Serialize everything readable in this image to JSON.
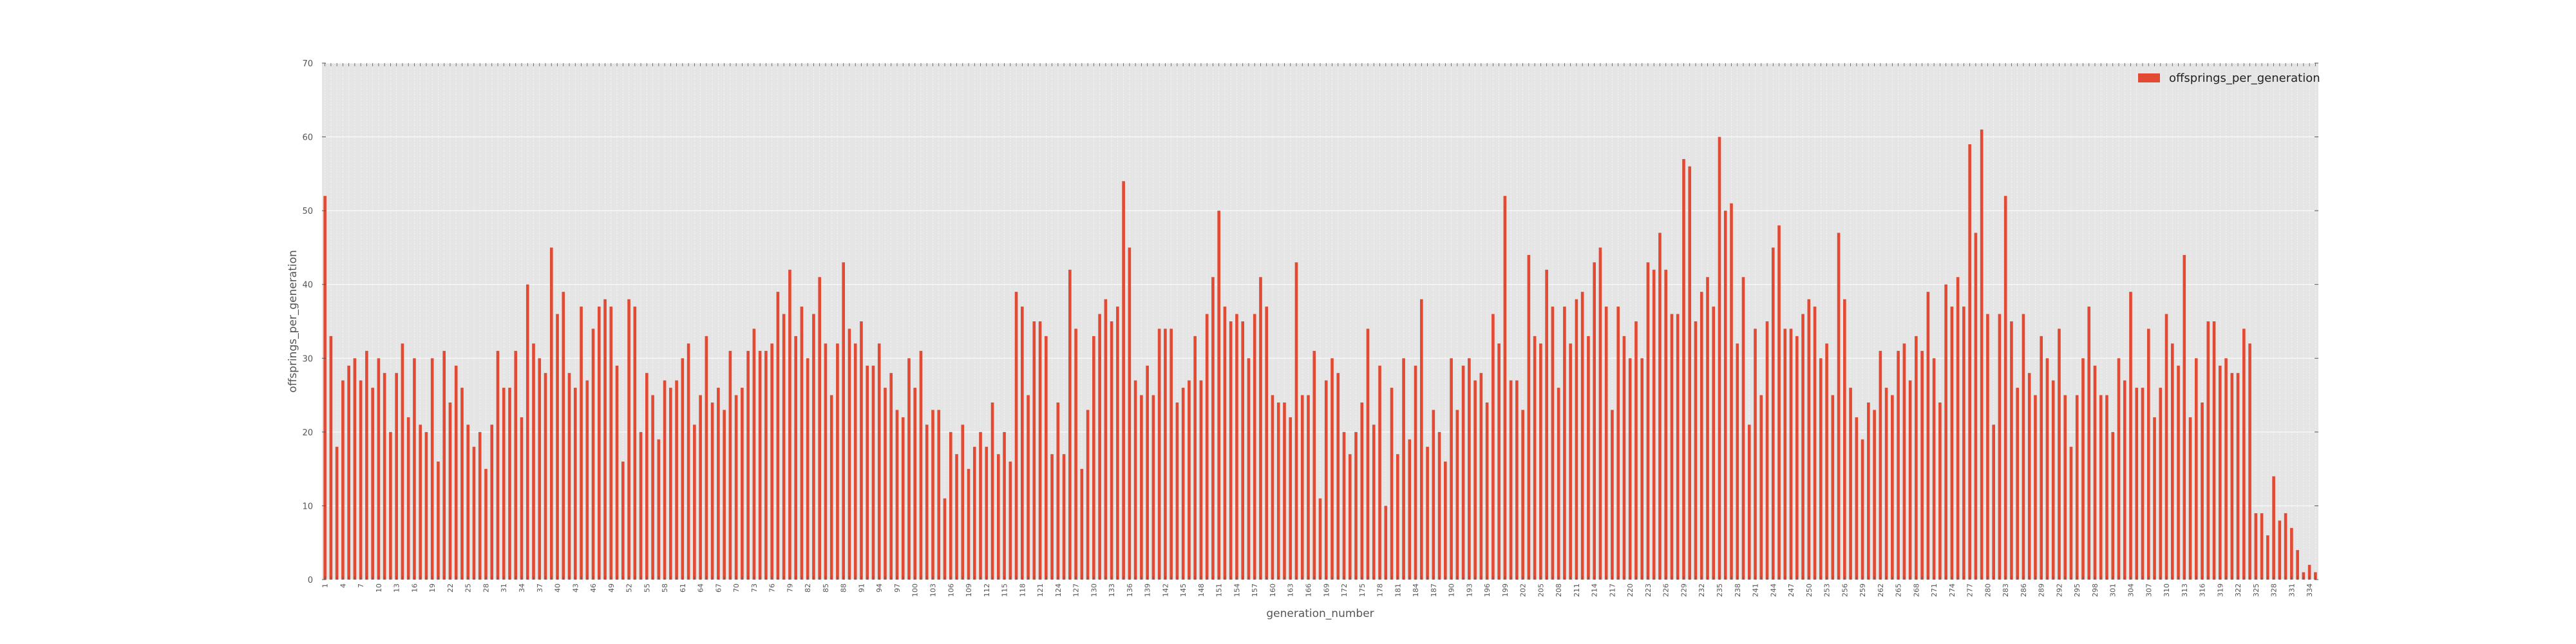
{
  "chart_data": {
    "type": "bar",
    "title": "",
    "xlabel": "generation_number",
    "ylabel": "offsprings_per_generation",
    "ylim": [
      0,
      70
    ],
    "yticks": [
      0,
      10,
      20,
      30,
      40,
      50,
      60,
      70
    ],
    "grid": true,
    "legend_placement": "top-right",
    "x_start": 1,
    "x_tick_label_step": 3,
    "series": [
      {
        "name": "offsprings_per_generation",
        "color": "#e24a33",
        "values": [
          52,
          33,
          18,
          27,
          29,
          30,
          27,
          31,
          26,
          30,
          28,
          20,
          28,
          32,
          22,
          30,
          21,
          20,
          30,
          16,
          31,
          24,
          29,
          26,
          21,
          18,
          20,
          15,
          21,
          31,
          26,
          26,
          31,
          22,
          40,
          32,
          30,
          28,
          45,
          36,
          39,
          28,
          26,
          37,
          27,
          34,
          37,
          38,
          37,
          29,
          16,
          38,
          37,
          20,
          28,
          25,
          19,
          27,
          26,
          27,
          30,
          32,
          21,
          25,
          33,
          24,
          26,
          23,
          31,
          25,
          26,
          31,
          34,
          31,
          31,
          32,
          39,
          36,
          42,
          33,
          37,
          30,
          36,
          41,
          32,
          25,
          32,
          43,
          34,
          32,
          35,
          29,
          29,
          32,
          26,
          28,
          23,
          22,
          30,
          26,
          31,
          21,
          23,
          23,
          11,
          20,
          17,
          21,
          15,
          18,
          20,
          18,
          24,
          17,
          20,
          16,
          39,
          37,
          25,
          35,
          35,
          33,
          17,
          24,
          17,
          42,
          34,
          15,
          23,
          33,
          36,
          38,
          35,
          37,
          54,
          45,
          27,
          25,
          29,
          25,
          34,
          34,
          34,
          24,
          26,
          27,
          33,
          27,
          36,
          41,
          50,
          37,
          35,
          36,
          35,
          30,
          36,
          41,
          37,
          25,
          24,
          24,
          22,
          43,
          25,
          25,
          31,
          11,
          27,
          30,
          28,
          20,
          17,
          20,
          24,
          34,
          21,
          29,
          10,
          26,
          17,
          30,
          19,
          29,
          38,
          18,
          23,
          20,
          16,
          30,
          23,
          29,
          30,
          27,
          28,
          24,
          36,
          32,
          52,
          27,
          27,
          23,
          44,
          33,
          32,
          42,
          37,
          26,
          37,
          32,
          38,
          39,
          33,
          43,
          45,
          37,
          23,
          37,
          33,
          30,
          35,
          30,
          43,
          42,
          47,
          42,
          36,
          36,
          57,
          56,
          35,
          39,
          41,
          37,
          60,
          50,
          51,
          32,
          41,
          21,
          34,
          25,
          35,
          45,
          48,
          34,
          34,
          33,
          36,
          38,
          37,
          30,
          32,
          25,
          47,
          38,
          26,
          22,
          19,
          24,
          23,
          31,
          26,
          25,
          31,
          32,
          27,
          33,
          31,
          39,
          30,
          24,
          40,
          37,
          41,
          37,
          59,
          47,
          61,
          36,
          21,
          36,
          52,
          35,
          26,
          36,
          28,
          25,
          33,
          30,
          27,
          34,
          25,
          18,
          25,
          30,
          37,
          29,
          25,
          25,
          20,
          30,
          27,
          39,
          26,
          26,
          34,
          22,
          26,
          36,
          32,
          29,
          44,
          22,
          30,
          24,
          35,
          35,
          29,
          30,
          28,
          28,
          34,
          32,
          9,
          9,
          6,
          14,
          8,
          9,
          7,
          4,
          1,
          2,
          1
        ]
      }
    ]
  }
}
